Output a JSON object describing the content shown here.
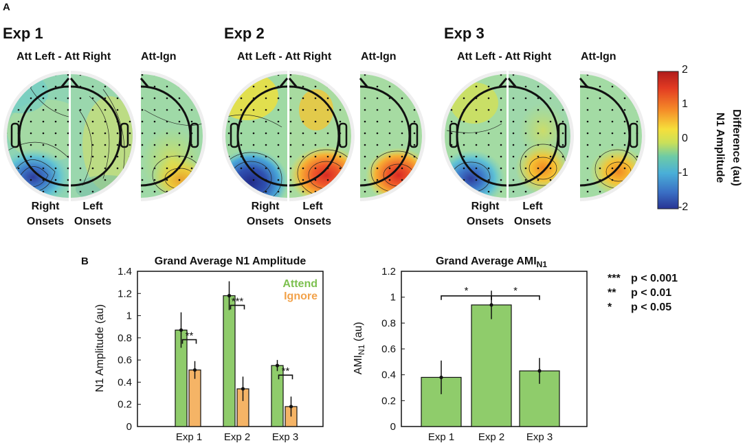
{
  "panel_a": {
    "letter": "A",
    "experiments": [
      {
        "title": "Exp 1",
        "diff_label": "Att Left - Att Right",
        "attign_label": "Att-Ign",
        "right_onsets": [
          "Right",
          "Onsets"
        ],
        "left_onsets": [
          "Left",
          "Onsets"
        ]
      },
      {
        "title": "Exp 2",
        "diff_label": "Att Left - Att Right",
        "attign_label": "Att-Ign",
        "right_onsets": [
          "Right",
          "Onsets"
        ],
        "left_onsets": [
          "Left",
          "Onsets"
        ]
      },
      {
        "title": "Exp 3",
        "diff_label": "Att Left - Att Right",
        "attign_label": "Att-Ign",
        "right_onsets": [
          "Right",
          "Onsets"
        ],
        "left_onsets": [
          "Left",
          "Onsets"
        ]
      }
    ],
    "colorbar": {
      "title_lines": [
        "N1 Amplitude",
        "Difference (au)"
      ],
      "ticks": [
        "2",
        "1",
        "0",
        "-1",
        "-2"
      ],
      "range": [
        -2,
        2
      ]
    }
  },
  "panel_b": {
    "letter": "B",
    "significance_legend": [
      {
        "stars": "***",
        "text": "p < 0.001"
      },
      {
        "stars": "**",
        "text": "p < 0.01"
      },
      {
        "stars": "*",
        "text": "p < 0.05"
      }
    ]
  },
  "colors": {
    "attend": "#8fcc6b",
    "ignore": "#f5b466",
    "attend_text": "#7cc04f",
    "ignore_text": "#f2a24a"
  },
  "chart_data": [
    {
      "type": "bar",
      "title": "Grand Average N1 Amplitude",
      "xlabel": "",
      "ylabel": "N1 Amplitude (au)",
      "ylim": [
        0,
        1.4
      ],
      "yticks": [
        "0",
        "0.2",
        "0.4",
        "0.6",
        "0.8",
        "1",
        "1.2",
        "1.4"
      ],
      "categories": [
        "Exp 1",
        "Exp 2",
        "Exp 3"
      ],
      "series": [
        {
          "name": "Attend",
          "values": [
            0.87,
            1.18,
            0.55
          ],
          "errors": [
            0.16,
            0.13,
            0.05
          ]
        },
        {
          "name": "Ignore",
          "values": [
            0.51,
            0.34,
            0.18
          ],
          "errors": [
            0.08,
            0.11,
            0.09
          ]
        }
      ],
      "significance": [
        "**",
        "***",
        "**"
      ],
      "legend": "top-right"
    },
    {
      "type": "bar",
      "title": "Grand Average AMI",
      "title_sub": "N1",
      "xlabel": "",
      "ylabel": "AMI",
      "ylabel_sub": "N1",
      "ylabel_unit": " (au)",
      "ylim": [
        0,
        1.2
      ],
      "yticks": [
        "0",
        "0.2",
        "0.4",
        "0.6",
        "0.8",
        "1",
        "1.2"
      ],
      "categories": [
        "Exp 1",
        "Exp 2",
        "Exp 3"
      ],
      "values": [
        0.38,
        0.94,
        0.43
      ],
      "errors": [
        0.13,
        0.11,
        0.1
      ],
      "significance": [
        {
          "between": [
            0,
            1
          ],
          "label": "*"
        },
        {
          "between": [
            1,
            2
          ],
          "label": "*"
        }
      ]
    }
  ]
}
